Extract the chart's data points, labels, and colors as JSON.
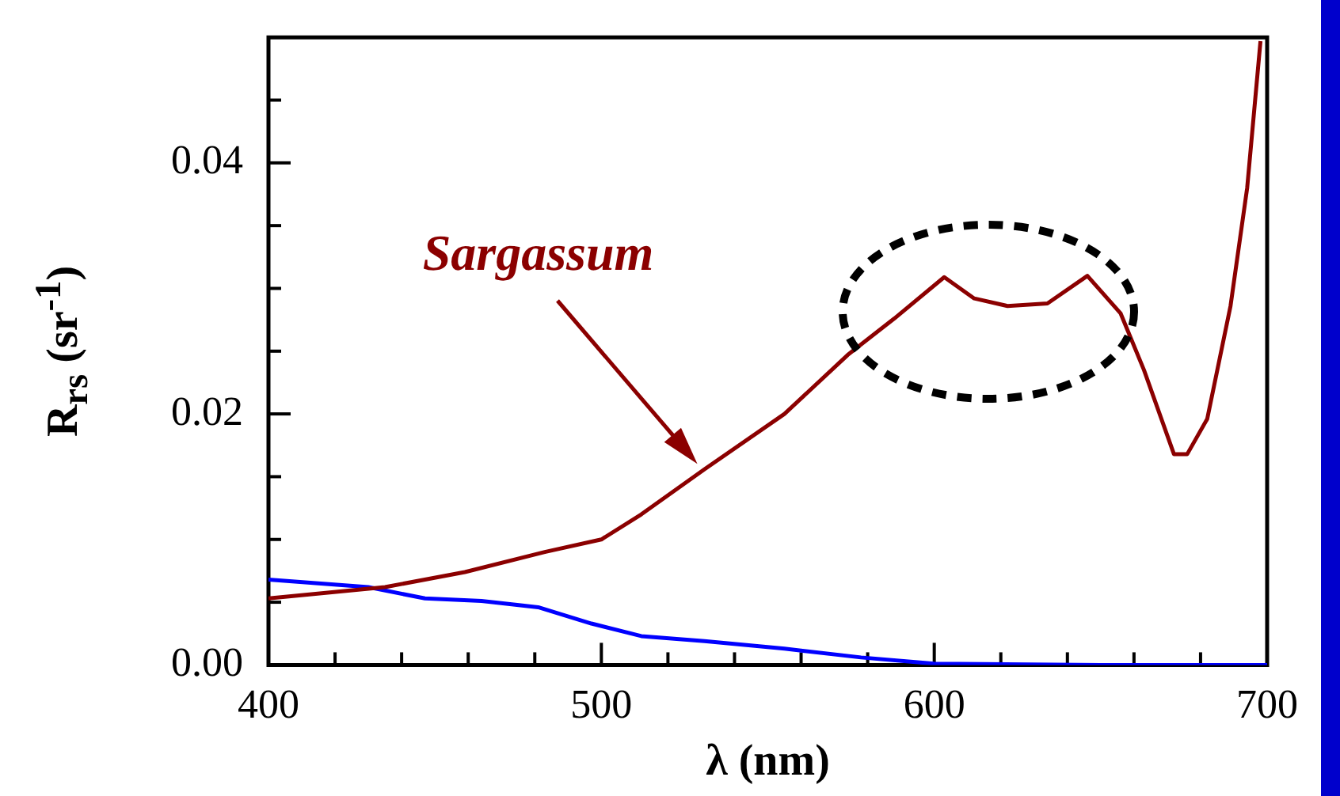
{
  "chart_data": {
    "type": "line",
    "xlabel": "λ (nm)",
    "ylabel": "R$_{rs}$ (sr$^{-1}$)",
    "xlim": [
      400,
      700
    ],
    "ylim": [
      0,
      0.05
    ],
    "xticks": [
      400,
      {
        "value": 420,
        "label": null
      },
      {
        "value": 440,
        "label": null
      },
      {
        "value": 460,
        "label": null
      },
      {
        "value": 480,
        "label": null
      },
      500,
      {
        "value": 520,
        "label": null
      },
      {
        "value": 540,
        "label": null
      },
      {
        "value": 560,
        "label": null
      },
      {
        "value": 580,
        "label": null
      },
      600,
      {
        "value": 620,
        "label": null
      },
      {
        "value": 640,
        "label": null
      },
      {
        "value": 660,
        "label": null
      },
      {
        "value": 680,
        "label": null
      },
      700
    ],
    "yticks": [
      "0.00",
      {
        "value": 0.005,
        "label": null
      },
      {
        "value": 0.01,
        "label": null
      },
      {
        "value": 0.015,
        "label": null
      },
      {
        "value": 0.02,
        "label": "0.02"
      },
      {
        "value": 0.025,
        "label": null
      },
      {
        "value": 0.03,
        "label": null
      },
      {
        "value": 0.035,
        "label": null
      },
      {
        "value": 0.04,
        "label": "0.04"
      },
      {
        "value": 0.045,
        "label": null
      }
    ],
    "grid": false,
    "legend": false,
    "marker": "none",
    "line_style": "solid",
    "annotations": [
      "Sargassum"
    ],
    "series": [
      {
        "color": "#8b0000",
        "x": [
          400,
          435,
          459,
          483,
          500,
          512,
          531,
          555,
          574,
          588,
          603,
          612,
          622,
          634,
          646,
          656,
          663,
          672,
          676,
          682,
          689,
          694,
          698
        ],
        "values": [
          0.0053,
          0.0062,
          0.0074,
          0.009,
          0.01,
          0.012,
          0.0156,
          0.02,
          0.0247,
          0.0276,
          0.0309,
          0.0292,
          0.0286,
          0.0288,
          0.031,
          0.028,
          0.0235,
          0.0168,
          0.0168,
          0.0196,
          0.0286,
          0.038,
          0.0497
        ]
      },
      {
        "color": "#0000ff",
        "x": [
          400,
          430,
          447,
          464,
          481,
          497,
          512,
          531,
          555,
          578,
          600,
          650,
          700
        ],
        "values": [
          0.0068,
          0.0062,
          0.0053,
          0.0051,
          0.0046,
          0.0033,
          0.0023,
          0.0019,
          0.0013,
          0.0006,
          0.0001,
          0,
          0
        ]
      }
    ]
  }
}
